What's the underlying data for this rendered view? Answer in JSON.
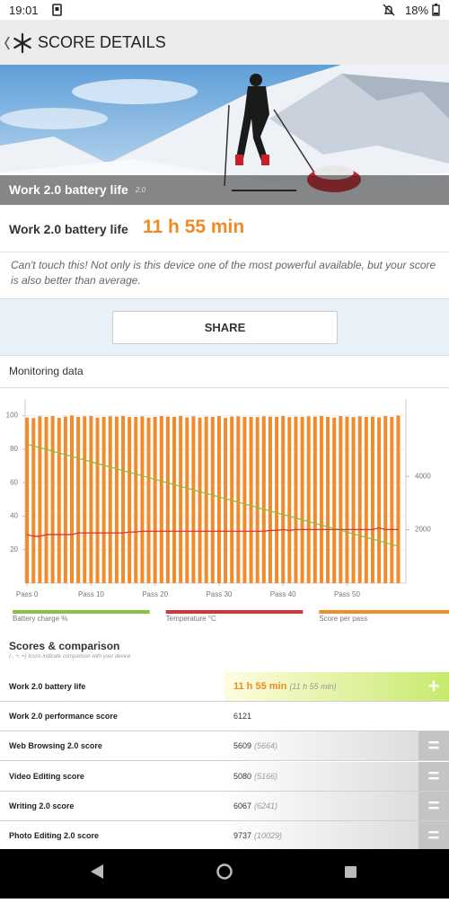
{
  "status_bar": {
    "time": "19:01",
    "battery": "18%"
  },
  "header": {
    "title": "SCORE DETAILS"
  },
  "hero": {
    "title": "Work 2.0 battery life",
    "version": "2.0"
  },
  "result": {
    "label": "Work 2.0 battery life",
    "value": "11 h 55 min"
  },
  "description": "Can't touch this! Not only is this device one of the most powerful available, but your score is also better than average.",
  "share_button": "SHARE",
  "monitoring": {
    "title": "Monitoring data",
    "chart_data": {
      "type": "combo",
      "x": [
        0,
        1,
        2,
        3,
        4,
        5,
        6,
        7,
        8,
        9,
        10,
        11,
        12,
        13,
        14,
        15,
        16,
        17,
        18,
        19,
        20,
        21,
        22,
        23,
        24,
        25,
        26,
        27,
        28,
        29,
        30,
        31,
        32,
        33,
        34,
        35,
        36,
        37,
        38,
        39,
        40,
        41,
        42,
        43,
        44,
        45,
        46,
        47,
        48,
        49,
        50,
        51,
        52,
        53,
        54,
        55,
        56,
        57,
        58
      ],
      "xlim": [
        -0.3,
        59.2
      ],
      "xticks": [
        {
          "value": 0,
          "label": "Pass 0"
        },
        {
          "value": 10,
          "label": "Pass 10"
        },
        {
          "value": 20,
          "label": "Pass 20"
        },
        {
          "value": 30,
          "label": "Pass 30"
        },
        {
          "value": 40,
          "label": "Pass 40"
        },
        {
          "value": 50,
          "label": "Pass 50"
        }
      ],
      "ylim": [
        0,
        110
      ],
      "yticks": [
        20,
        40,
        60,
        80,
        100
      ],
      "y2lim": [
        0,
        6900
      ],
      "y2ticks": [
        2000,
        4000
      ],
      "grid": true,
      "series": [
        {
          "name": "Battery charge %",
          "type": "line",
          "color": "#84c441",
          "values": [
            83,
            81.9,
            80.9,
            79.8,
            78.8,
            77.7,
            76.7,
            75.6,
            74.6,
            73.5,
            72.5,
            71.4,
            70.4,
            69.3,
            68.3,
            67.2,
            66.2,
            65.1,
            64.1,
            63,
            62,
            60.9,
            59.9,
            58.8,
            57.8,
            56.7,
            55.7,
            54.6,
            53.6,
            52.5,
            51.5,
            50.4,
            49.4,
            48.3,
            47.3,
            46.2,
            45.2,
            44.1,
            43.1,
            42,
            41,
            39.9,
            38.9,
            37.8,
            36.8,
            35.7,
            34.7,
            33.6,
            32.6,
            31.5,
            30.5,
            29.4,
            28.4,
            27.3,
            26.3,
            25.2,
            24.2,
            23.1,
            22
          ]
        },
        {
          "name": "Temperature °C",
          "type": "line",
          "color": "#d6343c",
          "values": [
            29,
            28,
            28,
            29,
            29,
            29,
            29,
            29,
            30,
            30,
            30,
            30,
            30,
            30,
            30,
            30,
            30.5,
            30.5,
            31,
            31,
            31,
            31,
            31,
            31,
            31,
            31,
            31,
            31,
            31,
            31,
            31,
            31,
            31,
            31,
            31,
            31,
            31,
            31,
            31.5,
            31.5,
            32,
            31.5,
            32,
            32,
            32,
            32,
            32,
            32,
            32,
            32,
            32,
            32,
            32,
            32,
            32,
            33,
            32,
            32,
            32
          ]
        },
        {
          "name": "Score per pass",
          "type": "bar",
          "axis": "y2",
          "color": "#f28b2c",
          "values": [
            6200,
            6180,
            6250,
            6230,
            6260,
            6190,
            6240,
            6280,
            6230,
            6250,
            6260,
            6200,
            6230,
            6250,
            6240,
            6260,
            6220,
            6230,
            6250,
            6200,
            6230,
            6260,
            6240,
            6230,
            6260,
            6210,
            6250,
            6200,
            6240,
            6230,
            6260,
            6190,
            6240,
            6250,
            6230,
            6230,
            6220,
            6250,
            6240,
            6230,
            6260,
            6220,
            6240,
            6230,
            6250,
            6240,
            6260,
            6230,
            6200,
            6260,
            6240,
            6220,
            6250,
            6230,
            6240,
            6210,
            6260,
            6230,
            6280
          ]
        }
      ]
    }
  },
  "scores": {
    "title": "Scores & comparison",
    "note": "(-, +, =) Icons indicate comparison with your device",
    "rows": [
      {
        "label": "Work 2.0 battery life",
        "score": "11 h 55 min",
        "comparison": "(11 h 55 min)",
        "icon": "+"
      },
      {
        "label": "Work 2.0 performance score",
        "score": "6121"
      },
      {
        "label": "Web Browsing 2.0 score",
        "score": "5609",
        "comparison": "(5664)",
        "icon": "="
      },
      {
        "label": "Video Editing score",
        "score": "5080",
        "comparison": "(5166)",
        "icon": "="
      },
      {
        "label": "Writing 2.0 score",
        "score": "6067",
        "comparison": "(6241)",
        "icon": "="
      },
      {
        "label": "Photo Editing 2.0 score",
        "score": "9737",
        "comparison": "(10029)",
        "icon": "="
      }
    ]
  }
}
